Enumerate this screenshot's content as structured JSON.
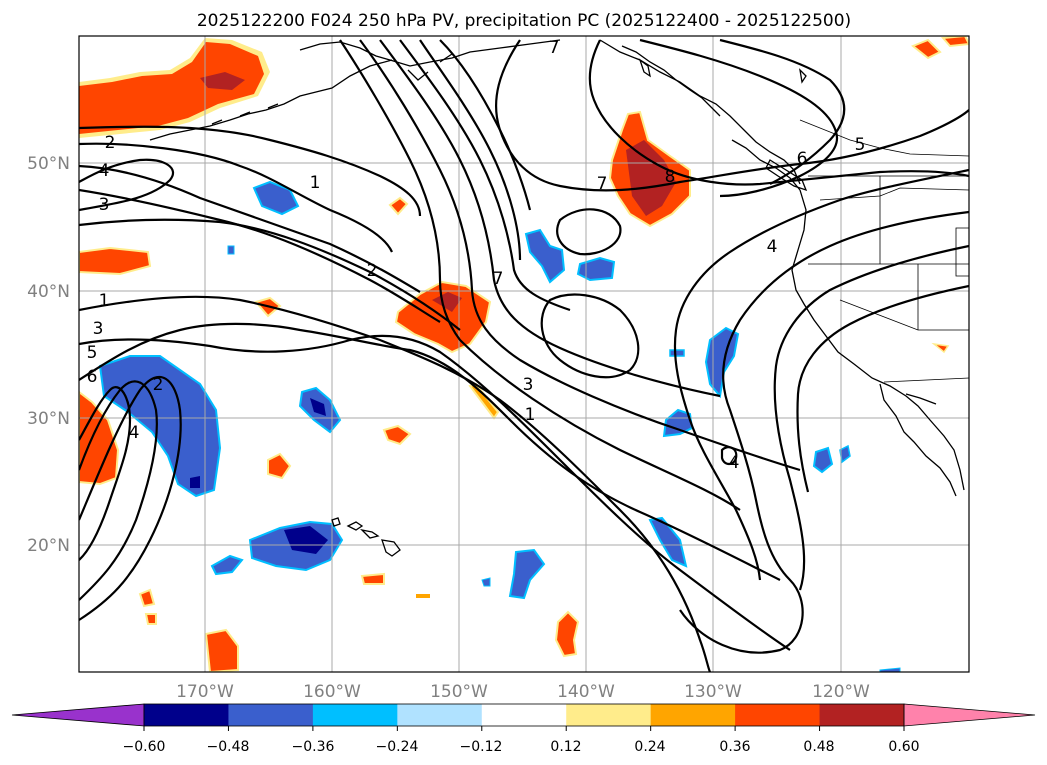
{
  "title": "2025122200 F024 250 hPa PV, precipitation PC (2025122400 - 2025122500)",
  "axes": {
    "lat_labels": [
      "50°N",
      "40°N",
      "30°N",
      "20°N"
    ],
    "lon_labels": [
      "170°W",
      "160°W",
      "150°W",
      "140°W",
      "130°W",
      "120°W"
    ],
    "lat_values": [
      50,
      40,
      30,
      20
    ],
    "lon_values": [
      -170,
      -160,
      -150,
      -140,
      -130,
      -120
    ],
    "lon_range": [
      -180,
      -110
    ],
    "lat_range": [
      10,
      60
    ]
  },
  "colorbar": {
    "tick_labels": [
      "−0.60",
      "−0.48",
      "−0.36",
      "−0.24",
      "−0.12",
      "0.12",
      "0.24",
      "0.36",
      "0.48",
      "0.60"
    ],
    "bin_colors": [
      "#9932CC",
      "#00008B",
      "#3A5FCD",
      "#00BFFF",
      "#B0E2FF",
      "#FFFFFF",
      "#FFEC8B",
      "#FFA500",
      "#FF4500",
      "#B22222",
      "#FF82AB"
    ]
  },
  "contour_labels": {
    "pv_1_a": "1",
    "pv_2_a": "2",
    "pv_7_a": "7",
    "pv_7_b": "7",
    "pv_7_c": "7",
    "pv_8": "8",
    "pv_6": "6",
    "pv_5": "5",
    "pv_4_a": "4",
    "pv_2_b": "2",
    "pv_4_b": "4",
    "pv_3_a": "3",
    "pv_1_b": "1",
    "pv_3_b": "3",
    "pv_5_b": "5",
    "pv_6_b": "6",
    "pv_2_c": "2",
    "pv_4_c": "4",
    "pv_3_c": "3",
    "pv_1_c": "1",
    "pv_4_d": "4"
  },
  "colors": {
    "precip_neg_strong": "#00008B",
    "precip_neg_mid": "#3A5FCD",
    "precip_neg_light": "#00BFFF",
    "precip_pos_light": "#FFEC8B",
    "precip_pos_mid": "#FF4500",
    "precip_pos_strong": "#B22222"
  }
}
